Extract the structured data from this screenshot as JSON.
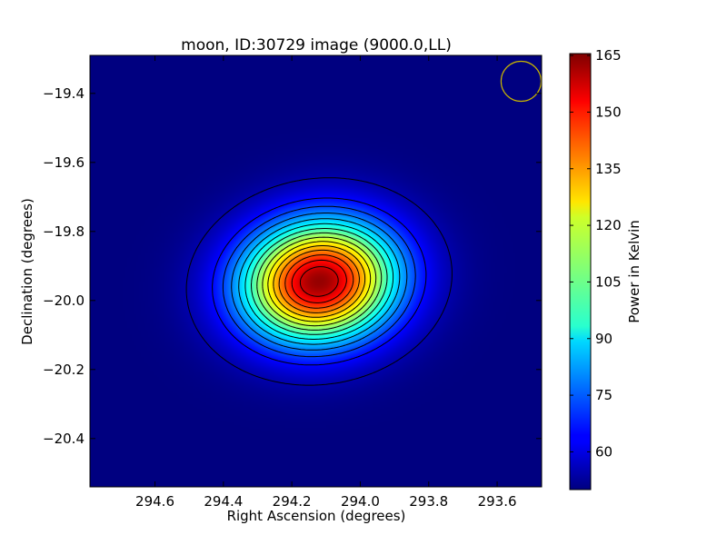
{
  "chart_data": {
    "type": "heatmap",
    "title": "moon, ID:30729 image (9000.0,LL)",
    "xlabel": "Right Ascension (degrees)",
    "ylabel": "Declination (degrees)",
    "colorbar_label": "Power in Kelvin",
    "xlim": [
      294.79,
      293.47
    ],
    "ylim": [
      -20.54,
      -19.29
    ],
    "x_ticks": [
      {
        "value": 294.6,
        "label": "294.6"
      },
      {
        "value": 294.4,
        "label": "294.4"
      },
      {
        "value": 294.2,
        "label": "294.2"
      },
      {
        "value": 294.0,
        "label": "294.0"
      },
      {
        "value": 293.8,
        "label": "293.8"
      },
      {
        "value": 293.6,
        "label": "293.6"
      }
    ],
    "y_ticks": [
      {
        "value": -19.4,
        "label": "−19.4"
      },
      {
        "value": -19.6,
        "label": "−19.6"
      },
      {
        "value": -19.8,
        "label": "−19.8"
      },
      {
        "value": -20.0,
        "label": "−20.0"
      },
      {
        "value": -20.2,
        "label": "−20.2"
      },
      {
        "value": -20.4,
        "label": "−20.4"
      }
    ],
    "colorbar": {
      "min": 50,
      "max": 165.5,
      "colormap": "jet",
      "ticks": [
        {
          "value": 60,
          "label": "60"
        },
        {
          "value": 75,
          "label": "75"
        },
        {
          "value": 90,
          "label": "90"
        },
        {
          "value": 105,
          "label": "105"
        },
        {
          "value": 120,
          "label": "120"
        },
        {
          "value": 135,
          "label": "135"
        },
        {
          "value": 150,
          "label": "150"
        },
        {
          "value": 165,
          "label": "165"
        }
      ]
    },
    "source": {
      "ra_center": 294.12,
      "dec_center": -19.945,
      "peak": 163,
      "background": 50,
      "sigma_ra": 0.155,
      "sigma_dec": 0.12
    },
    "contour_levels": [
      55,
      65,
      72,
      79,
      86,
      93,
      100,
      107,
      114,
      121,
      128,
      135,
      142,
      149,
      156
    ],
    "beam": {
      "ra": 293.53,
      "dec": -19.365,
      "radius_deg": 0.058,
      "color": "#c8b400"
    }
  }
}
